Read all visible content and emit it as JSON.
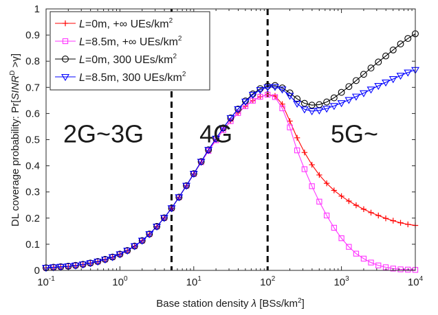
{
  "chart_data": {
    "type": "line",
    "title": "",
    "xlabel_prefix": "Base station density ",
    "xlabel_symbol": "λ",
    "xlabel_bracket": " [BSs/km",
    "xlabel_sup": "2",
    "xlabel_end": "]",
    "ylabel_prefix": "DL coverage probability: Pr[",
    "ylabel_symbol": "SINR",
    "ylabel_sup": "D",
    "ylabel_suffix": " >γ]",
    "x_scale": "log",
    "xlim": [
      0.1,
      10000
    ],
    "ylim": [
      0,
      1
    ],
    "x_ticks": [
      {
        "base": "10",
        "exp": "-1",
        "value": 0.1
      },
      {
        "base": "10",
        "exp": "0",
        "value": 1
      },
      {
        "base": "10",
        "exp": "1",
        "value": 10
      },
      {
        "base": "10",
        "exp": "2",
        "value": 100
      },
      {
        "base": "10",
        "exp": "3",
        "value": 1000
      },
      {
        "base": "10",
        "exp": "4",
        "value": 10000
      }
    ],
    "y_ticks": [
      "0",
      "0.1",
      "0.2",
      "0.3",
      "0.4",
      "0.5",
      "0.6",
      "0.7",
      "0.8",
      "0.9",
      "1"
    ],
    "legend_position": "top-left",
    "vlines": [
      5,
      100
    ],
    "region_labels": [
      {
        "text": "2G~3G",
        "x": 0.6
      },
      {
        "text": "4G",
        "x": 20
      },
      {
        "text": "5G~",
        "x": 1500
      }
    ],
    "x": [
      0.1,
      0.126,
      0.158,
      0.2,
      0.251,
      0.316,
      0.398,
      0.501,
      0.631,
      0.794,
      1,
      1.26,
      1.58,
      2,
      2.51,
      3.16,
      3.98,
      5.01,
      6.31,
      7.94,
      10,
      12.6,
      15.8,
      20,
      25.1,
      31.6,
      39.8,
      50.1,
      63.1,
      79.4,
      100,
      126,
      158,
      200,
      251,
      316,
      398,
      501,
      631,
      794,
      1000,
      1260,
      1580,
      2000,
      2510,
      3160,
      3980,
      5010,
      6310,
      7940,
      10000
    ],
    "series": [
      {
        "legend_prefix": "L",
        "legend_rest": "=0m, +∞ UEs/km",
        "legend_sup": "2",
        "color": "#ff0000",
        "marker": "plus",
        "values": [
          0.01,
          0.012,
          0.014,
          0.016,
          0.019,
          0.023,
          0.028,
          0.034,
          0.042,
          0.051,
          0.062,
          0.076,
          0.093,
          0.114,
          0.139,
          0.168,
          0.201,
          0.238,
          0.28,
          0.324,
          0.369,
          0.414,
          0.457,
          0.498,
          0.537,
          0.571,
          0.602,
          0.628,
          0.649,
          0.664,
          0.672,
          0.667,
          0.636,
          0.571,
          0.507,
          0.451,
          0.404,
          0.365,
          0.333,
          0.306,
          0.284,
          0.265,
          0.249,
          0.234,
          0.221,
          0.21,
          0.199,
          0.19,
          0.182,
          0.176,
          0.172
        ]
      },
      {
        "legend_prefix": "L",
        "legend_rest": "=8.5m, +∞ UEs/km",
        "legend_sup": "2",
        "color": "#ff33ff",
        "marker": "square",
        "values": [
          0.01,
          0.012,
          0.014,
          0.016,
          0.019,
          0.023,
          0.028,
          0.034,
          0.042,
          0.051,
          0.062,
          0.076,
          0.093,
          0.114,
          0.139,
          0.168,
          0.201,
          0.238,
          0.28,
          0.324,
          0.369,
          0.414,
          0.457,
          0.498,
          0.537,
          0.571,
          0.602,
          0.628,
          0.649,
          0.664,
          0.672,
          0.663,
          0.62,
          0.547,
          0.459,
          0.387,
          0.322,
          0.263,
          0.21,
          0.163,
          0.123,
          0.09,
          0.064,
          0.045,
          0.03,
          0.019,
          0.012,
          0.007,
          0.004,
          0.003,
          0.002
        ]
      },
      {
        "legend_prefix": "L",
        "legend_rest": "=0m, 300 UEs/km",
        "legend_sup": "2",
        "color": "#000000",
        "marker": "circle",
        "values": [
          0.01,
          0.012,
          0.014,
          0.016,
          0.019,
          0.023,
          0.028,
          0.034,
          0.042,
          0.051,
          0.062,
          0.076,
          0.093,
          0.114,
          0.139,
          0.168,
          0.201,
          0.238,
          0.28,
          0.324,
          0.37,
          0.416,
          0.461,
          0.504,
          0.545,
          0.583,
          0.617,
          0.648,
          0.675,
          0.695,
          0.705,
          0.707,
          0.698,
          0.679,
          0.656,
          0.639,
          0.632,
          0.634,
          0.644,
          0.66,
          0.681,
          0.703,
          0.726,
          0.75,
          0.774,
          0.797,
          0.82,
          0.843,
          0.866,
          0.887,
          0.905
        ]
      },
      {
        "legend_prefix": "L",
        "legend_rest": "=8.5m, 300 UEs/km",
        "legend_sup": "2",
        "color": "#0000ff",
        "marker": "triangle-down",
        "values": [
          0.01,
          0.012,
          0.014,
          0.016,
          0.019,
          0.023,
          0.028,
          0.034,
          0.042,
          0.051,
          0.062,
          0.076,
          0.093,
          0.114,
          0.139,
          0.168,
          0.201,
          0.238,
          0.28,
          0.324,
          0.37,
          0.416,
          0.461,
          0.504,
          0.545,
          0.583,
          0.617,
          0.646,
          0.672,
          0.69,
          0.7,
          0.702,
          0.692,
          0.668,
          0.638,
          0.616,
          0.609,
          0.612,
          0.619,
          0.629,
          0.64,
          0.652,
          0.665,
          0.678,
          0.692,
          0.706,
          0.719,
          0.732,
          0.745,
          0.757,
          0.767
        ]
      }
    ]
  }
}
